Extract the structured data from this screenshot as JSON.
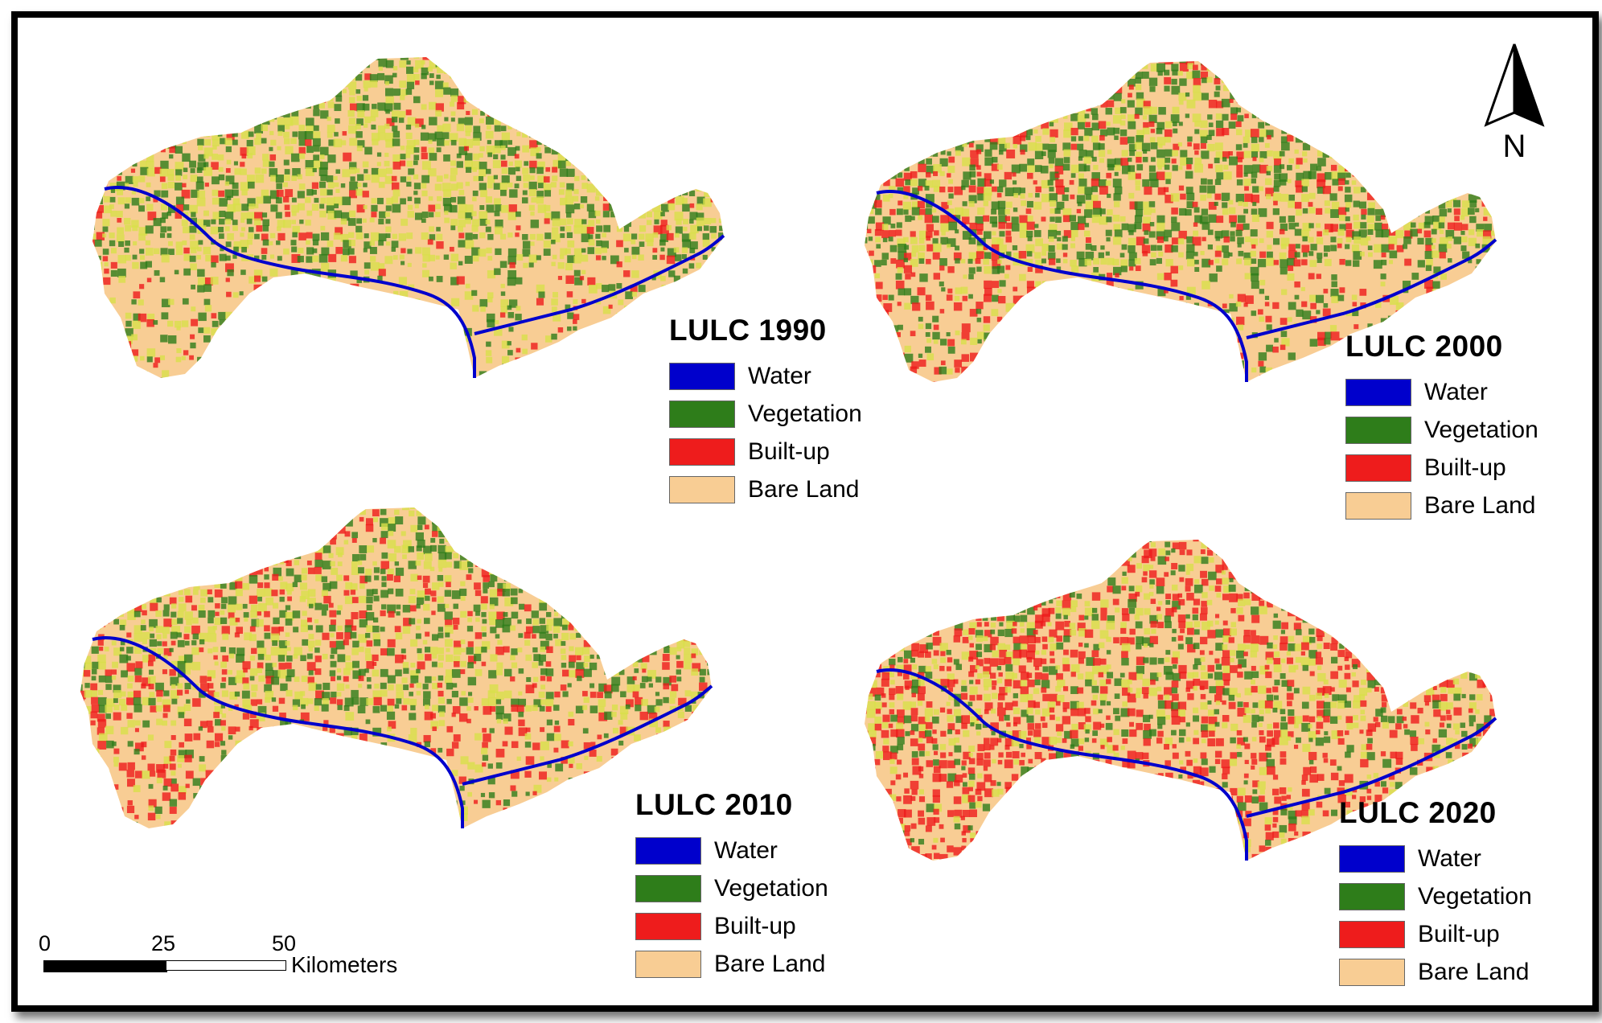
{
  "colors": {
    "water": "#0000cc",
    "vegetation": "#2e7d1a",
    "builtup": "#ee1c1c",
    "bareland": "#f8cd94",
    "mixed_yellow": "#d8e04a"
  },
  "panels": [
    {
      "title": "LULC 1990",
      "legend": [
        {
          "label": "Water",
          "color": "#0000cc"
        },
        {
          "label": "Vegetation",
          "color": "#2e7d1a"
        },
        {
          "label": "Built-up",
          "color": "#ee1c1c"
        },
        {
          "label": "Bare Land",
          "color": "#f8cd94"
        }
      ]
    },
    {
      "title": "LULC 2000",
      "legend": [
        {
          "label": "Water",
          "color": "#0000cc"
        },
        {
          "label": "Vegetation",
          "color": "#2e7d1a"
        },
        {
          "label": "Built-up",
          "color": "#ee1c1c"
        },
        {
          "label": "Bare Land",
          "color": "#f8cd94"
        }
      ]
    },
    {
      "title": "LULC 2010",
      "legend": [
        {
          "label": "Water",
          "color": "#0000cc"
        },
        {
          "label": "Vegetation",
          "color": "#2e7d1a"
        },
        {
          "label": "Built-up",
          "color": "#ee1c1c"
        },
        {
          "label": "Bare Land",
          "color": "#f8cd94"
        }
      ]
    },
    {
      "title": "LULC 2020",
      "legend": [
        {
          "label": "Water",
          "color": "#0000cc"
        },
        {
          "label": "Vegetation",
          "color": "#2e7d1a"
        },
        {
          "label": "Built-up",
          "color": "#ee1c1c"
        },
        {
          "label": "Bare Land",
          "color": "#f8cd94"
        }
      ]
    }
  ],
  "north_arrow": {
    "label": "N",
    "icon": "north-arrow-icon"
  },
  "scale_bar": {
    "ticks": [
      "0",
      "25",
      "50"
    ],
    "unit": "Kilometers"
  }
}
